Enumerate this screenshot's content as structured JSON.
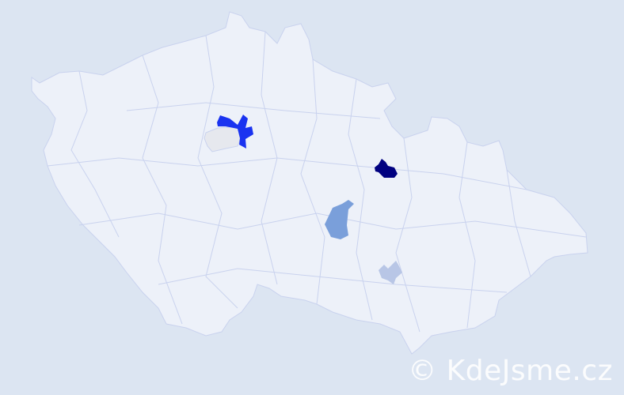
{
  "map": {
    "colors": {
      "background": "#dce5f2",
      "country_fill": "#edf1f9",
      "border": "#c9d2ee",
      "highest": "#000080",
      "high": "#1a33f0",
      "medium": "#7a9fda",
      "low": "#b8c6e6",
      "no_data": "#e6e8ee"
    },
    "highlighted_districts": [
      {
        "level": "high"
      },
      {
        "level": "no_data"
      },
      {
        "level": "highest"
      },
      {
        "level": "medium"
      },
      {
        "level": "low"
      }
    ]
  },
  "watermark": "© KdeJsme.cz"
}
